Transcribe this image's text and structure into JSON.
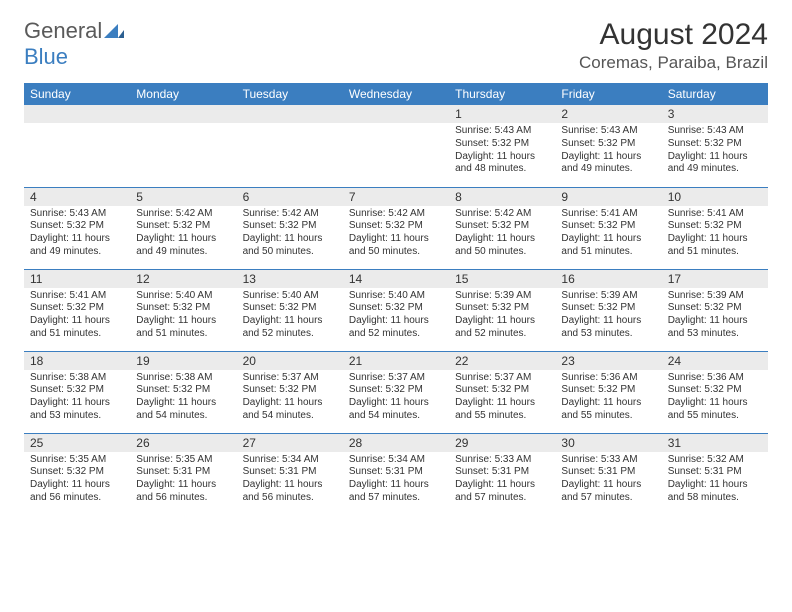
{
  "logo": {
    "gray": "General",
    "blue": "Blue"
  },
  "title": "August 2024",
  "location": "Coremas, Paraiba, Brazil",
  "colors": {
    "header_bg": "#3b7ec0",
    "header_text": "#ffffff",
    "daynum_bg": "#ebebeb",
    "row_border": "#3b7ec0",
    "text": "#333333",
    "logo_gray": "#5a5a5a",
    "logo_blue": "#3b7ec0"
  },
  "weekdays": [
    "Sunday",
    "Monday",
    "Tuesday",
    "Wednesday",
    "Thursday",
    "Friday",
    "Saturday"
  ],
  "rows": [
    [
      null,
      null,
      null,
      null,
      {
        "day": "1",
        "sunrise": "5:43 AM",
        "sunset": "5:32 PM",
        "daylight": "11 hours and 48 minutes."
      },
      {
        "day": "2",
        "sunrise": "5:43 AM",
        "sunset": "5:32 PM",
        "daylight": "11 hours and 49 minutes."
      },
      {
        "day": "3",
        "sunrise": "5:43 AM",
        "sunset": "5:32 PM",
        "daylight": "11 hours and 49 minutes."
      }
    ],
    [
      {
        "day": "4",
        "sunrise": "5:43 AM",
        "sunset": "5:32 PM",
        "daylight": "11 hours and 49 minutes."
      },
      {
        "day": "5",
        "sunrise": "5:42 AM",
        "sunset": "5:32 PM",
        "daylight": "11 hours and 49 minutes."
      },
      {
        "day": "6",
        "sunrise": "5:42 AM",
        "sunset": "5:32 PM",
        "daylight": "11 hours and 50 minutes."
      },
      {
        "day": "7",
        "sunrise": "5:42 AM",
        "sunset": "5:32 PM",
        "daylight": "11 hours and 50 minutes."
      },
      {
        "day": "8",
        "sunrise": "5:42 AM",
        "sunset": "5:32 PM",
        "daylight": "11 hours and 50 minutes."
      },
      {
        "day": "9",
        "sunrise": "5:41 AM",
        "sunset": "5:32 PM",
        "daylight": "11 hours and 51 minutes."
      },
      {
        "day": "10",
        "sunrise": "5:41 AM",
        "sunset": "5:32 PM",
        "daylight": "11 hours and 51 minutes."
      }
    ],
    [
      {
        "day": "11",
        "sunrise": "5:41 AM",
        "sunset": "5:32 PM",
        "daylight": "11 hours and 51 minutes."
      },
      {
        "day": "12",
        "sunrise": "5:40 AM",
        "sunset": "5:32 PM",
        "daylight": "11 hours and 51 minutes."
      },
      {
        "day": "13",
        "sunrise": "5:40 AM",
        "sunset": "5:32 PM",
        "daylight": "11 hours and 52 minutes."
      },
      {
        "day": "14",
        "sunrise": "5:40 AM",
        "sunset": "5:32 PM",
        "daylight": "11 hours and 52 minutes."
      },
      {
        "day": "15",
        "sunrise": "5:39 AM",
        "sunset": "5:32 PM",
        "daylight": "11 hours and 52 minutes."
      },
      {
        "day": "16",
        "sunrise": "5:39 AM",
        "sunset": "5:32 PM",
        "daylight": "11 hours and 53 minutes."
      },
      {
        "day": "17",
        "sunrise": "5:39 AM",
        "sunset": "5:32 PM",
        "daylight": "11 hours and 53 minutes."
      }
    ],
    [
      {
        "day": "18",
        "sunrise": "5:38 AM",
        "sunset": "5:32 PM",
        "daylight": "11 hours and 53 minutes."
      },
      {
        "day": "19",
        "sunrise": "5:38 AM",
        "sunset": "5:32 PM",
        "daylight": "11 hours and 54 minutes."
      },
      {
        "day": "20",
        "sunrise": "5:37 AM",
        "sunset": "5:32 PM",
        "daylight": "11 hours and 54 minutes."
      },
      {
        "day": "21",
        "sunrise": "5:37 AM",
        "sunset": "5:32 PM",
        "daylight": "11 hours and 54 minutes."
      },
      {
        "day": "22",
        "sunrise": "5:37 AM",
        "sunset": "5:32 PM",
        "daylight": "11 hours and 55 minutes."
      },
      {
        "day": "23",
        "sunrise": "5:36 AM",
        "sunset": "5:32 PM",
        "daylight": "11 hours and 55 minutes."
      },
      {
        "day": "24",
        "sunrise": "5:36 AM",
        "sunset": "5:32 PM",
        "daylight": "11 hours and 55 minutes."
      }
    ],
    [
      {
        "day": "25",
        "sunrise": "5:35 AM",
        "sunset": "5:32 PM",
        "daylight": "11 hours and 56 minutes."
      },
      {
        "day": "26",
        "sunrise": "5:35 AM",
        "sunset": "5:31 PM",
        "daylight": "11 hours and 56 minutes."
      },
      {
        "day": "27",
        "sunrise": "5:34 AM",
        "sunset": "5:31 PM",
        "daylight": "11 hours and 56 minutes."
      },
      {
        "day": "28",
        "sunrise": "5:34 AM",
        "sunset": "5:31 PM",
        "daylight": "11 hours and 57 minutes."
      },
      {
        "day": "29",
        "sunrise": "5:33 AM",
        "sunset": "5:31 PM",
        "daylight": "11 hours and 57 minutes."
      },
      {
        "day": "30",
        "sunrise": "5:33 AM",
        "sunset": "5:31 PM",
        "daylight": "11 hours and 57 minutes."
      },
      {
        "day": "31",
        "sunrise": "5:32 AM",
        "sunset": "5:31 PM",
        "daylight": "11 hours and 58 minutes."
      }
    ]
  ],
  "labels": {
    "sunrise": "Sunrise: ",
    "sunset": "Sunset: ",
    "daylight": "Daylight: "
  }
}
